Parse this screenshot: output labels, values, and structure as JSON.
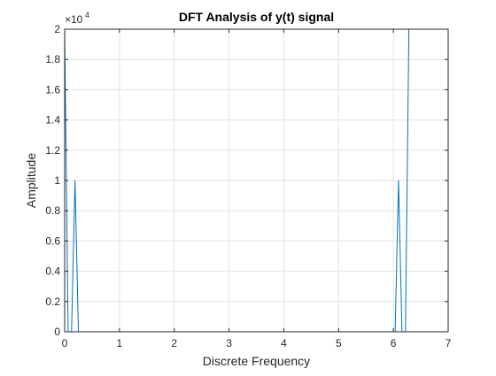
{
  "chart_data": {
    "type": "line",
    "title": "DFT Analysis of y(t) signal",
    "xlabel": "Discrete Frequency",
    "ylabel": "Amplitude",
    "xlim": [
      0,
      7
    ],
    "ylim": [
      0,
      20000
    ],
    "x_ticks": [
      "0",
      "1",
      "2",
      "3",
      "4",
      "5",
      "6",
      "7"
    ],
    "y_ticks": [
      "0",
      "0.2",
      "0.4",
      "0.6",
      "0.8",
      "1",
      "1.2",
      "1.4",
      "1.6",
      "1.8",
      "2"
    ],
    "y_exponent_label": "×10",
    "y_exponent_power": "4",
    "grid": true,
    "series": [
      {
        "color": "#0072bd",
        "x": [
          0,
          0.063,
          0.126,
          0.189,
          0.251,
          0.314,
          6.032,
          6.094,
          6.157,
          6.22,
          6.283
        ],
        "y": [
          20000,
          0,
          0,
          10000,
          0,
          0,
          0,
          10000,
          0,
          0,
          20000
        ]
      }
    ]
  }
}
